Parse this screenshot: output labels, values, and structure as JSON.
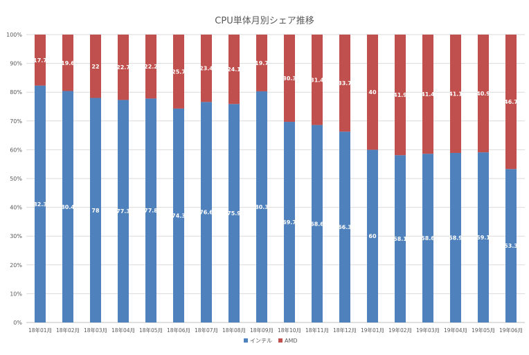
{
  "chart_data": {
    "type": "bar",
    "stacked": true,
    "title": "CPU単体月別シェア推移",
    "xlabel": "",
    "ylabel": "",
    "ylim": [
      0,
      100
    ],
    "yticks": [
      "0%",
      "10%",
      "20%",
      "30%",
      "40%",
      "50%",
      "60%",
      "70%",
      "80%",
      "90%",
      "100%"
    ],
    "categories": [
      "18年01月",
      "18年02月",
      "18年03月",
      "18年04月",
      "18年05月",
      "18年06月",
      "18年07月",
      "18年08月",
      "18年09月",
      "18年10月",
      "18年11月",
      "18年12月",
      "19年01月",
      "19年02月",
      "19年03月",
      "19年04月",
      "19年05月",
      "19年06月"
    ],
    "series": [
      {
        "name": "インテル",
        "color": "#4f81bd",
        "values": [
          82.3,
          80.4,
          78,
          77.3,
          77.8,
          74.3,
          76.6,
          75.9,
          80.3,
          69.7,
          68.6,
          66.3,
          60,
          58.1,
          58.6,
          58.9,
          59.1,
          53.3
        ],
        "labels": [
          "82.3",
          "80.4",
          "78",
          "77.3",
          "77.8",
          "74.3",
          "76.6",
          "75.9",
          "80.3",
          "69.7",
          "68.6",
          "66.3",
          "60",
          "58.1",
          "58.6",
          "58.9",
          "59.1",
          "53.3"
        ]
      },
      {
        "name": "AMD",
        "color": "#c0504d",
        "values": [
          17.7,
          19.6,
          22,
          22.7,
          22.2,
          25.7,
          23.4,
          24.1,
          19.7,
          30.3,
          31.4,
          33.7,
          40,
          41.9,
          41.4,
          41.1,
          40.9,
          46.7
        ],
        "labels": [
          "17.7",
          "19.6",
          "22",
          "22.7",
          "22.2",
          "25.7",
          "23.4",
          "24.1",
          "19.7",
          "30.3",
          "31.4",
          "33.7",
          "40",
          "41.9",
          "41.4",
          "41.1",
          "40.9",
          "46.7"
        ]
      }
    ],
    "grid": true,
    "legend": "bottom"
  }
}
